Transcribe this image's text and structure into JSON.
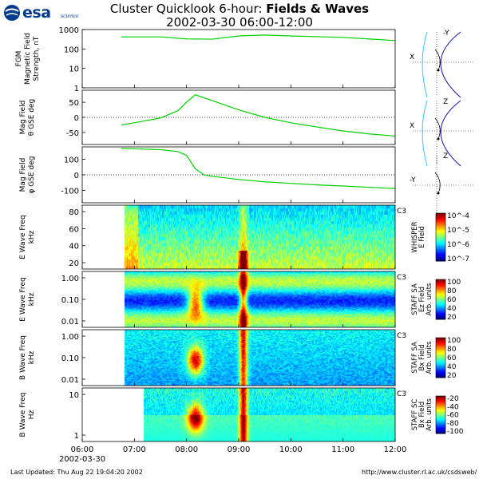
{
  "header": {
    "logo_text": "esa",
    "logo_sub": "science",
    "title_prefix": "Cluster Quicklook 6-hour: ",
    "title_bold": "Fields & Waves",
    "subtitle": "2002-03-30 06:00-12:00"
  },
  "footer": {
    "updated": "Last Updated:  Thu Aug 22 19:04:20 2002",
    "url": "http://www.cluster.rl.ac.uk/csdsweb/"
  },
  "time_axis": {
    "ticks": [
      "06:00",
      "07:00",
      "08:00",
      "09:00",
      "10:00",
      "11:00",
      "12:00"
    ],
    "date_label": "2002-03-30"
  },
  "colors": {
    "trace": "#00d000",
    "zero_line": "#000000",
    "magnetopause": "#1010a0",
    "bow_shock": "#40c0ff"
  },
  "chart_data": [
    {
      "type": "line",
      "panel": "fgm-strength",
      "ylabel_lines": [
        "FGM",
        "Magnetic Field",
        "Strength, nT"
      ],
      "yscale": "log",
      "ylim": [
        1,
        1000
      ],
      "y_ticks": [
        "1000",
        "100",
        "10",
        "1"
      ],
      "x": [
        "06:45",
        "07:00",
        "07:30",
        "08:00",
        "08:30",
        "09:00",
        "09:30",
        "10:00",
        "10:30",
        "11:00",
        "11:30",
        "12:00"
      ],
      "series": [
        {
          "values": [
            420,
            420,
            420,
            330,
            320,
            470,
            520,
            470,
            430,
            390,
            330,
            270
          ]
        }
      ]
    },
    {
      "type": "line",
      "panel": "mag-theta",
      "ylabel_lines": [
        "Mag Field",
        "θ GSE deg"
      ],
      "ylim": [
        -90,
        90
      ],
      "y_ticks": [
        "50",
        "0",
        "-50"
      ],
      "zero_line": true,
      "x": [
        "06:45",
        "07:00",
        "07:30",
        "07:50",
        "08:00",
        "08:10",
        "08:30",
        "09:00",
        "09:30",
        "10:00",
        "10:30",
        "11:00",
        "11:30",
        "12:00"
      ],
      "series": [
        {
          "values": [
            -25,
            -18,
            -2,
            22,
            50,
            75,
            55,
            25,
            0,
            -18,
            -32,
            -45,
            -55,
            -62
          ]
        }
      ]
    },
    {
      "type": "line",
      "panel": "mag-phi",
      "ylabel_lines": [
        "Mag Field",
        "φ GSE deg"
      ],
      "ylim": [
        -180,
        180
      ],
      "y_ticks": [
        "100",
        "0",
        "-100"
      ],
      "zero_line": true,
      "x": [
        "06:45",
        "07:00",
        "07:30",
        "07:50",
        "08:00",
        "08:10",
        "08:20",
        "08:30",
        "09:00",
        "09:30",
        "10:00",
        "10:30",
        "11:00",
        "11:30",
        "12:00"
      ],
      "series": [
        {
          "values": [
            170,
            168,
            162,
            150,
            125,
            40,
            0,
            -10,
            -30,
            -45,
            -55,
            -65,
            -72,
            -80,
            -88
          ]
        }
      ]
    },
    {
      "type": "heatmap",
      "panel": "whisper",
      "ylabel_lines": [
        "E Wave Freq",
        "kHz"
      ],
      "y_ticks": [
        "80",
        "60",
        "40",
        "20"
      ],
      "spacecraft": "C3",
      "colorbar_title": [
        "WHISPER",
        "E Field"
      ],
      "colorbar_scale": "log",
      "colorbar_ticks": [
        "10^-4",
        "10^-5",
        "10^-6",
        "10^-7"
      ]
    },
    {
      "type": "heatmap",
      "panel": "staff-sa-e",
      "ylabel_lines": [
        "E Wave Freq",
        "kHz"
      ],
      "y_ticks": [
        "1.00",
        "0.10",
        "0.01"
      ],
      "spacecraft": "C3",
      "colorbar_title": [
        "STAFF SA",
        "Ez Field",
        "Arb. units"
      ],
      "colorbar_ticks": [
        "100",
        "80",
        "60",
        "40",
        "20"
      ]
    },
    {
      "type": "heatmap",
      "panel": "staff-sa-b",
      "ylabel_lines": [
        "B Wave Freq",
        "kHz"
      ],
      "y_ticks": [
        "1.00",
        "0.10",
        "0.01"
      ],
      "spacecraft": "C3",
      "colorbar_title": [
        "STAFF SA",
        "Bx Field",
        "Arb. units"
      ],
      "colorbar_ticks": [
        "100",
        "80",
        "60",
        "40",
        "20"
      ]
    },
    {
      "type": "heatmap",
      "panel": "staff-sc",
      "ylabel_lines": [
        "B Wave Freq",
        "Hz"
      ],
      "y_ticks": [
        "10",
        "1"
      ],
      "spacecraft": "C3",
      "colorbar_title": [
        "STAFF SC",
        "Bx Field",
        "Arb. units"
      ],
      "colorbar_ticks": [
        "-20",
        "-40",
        "-60",
        "-80",
        "-100"
      ]
    }
  ],
  "orbit_plots": [
    {
      "axes": [
        "X",
        "-Y"
      ]
    },
    {
      "axes": [
        "X",
        "Z"
      ]
    },
    {
      "axes": [
        "-Y",
        "Z"
      ]
    }
  ]
}
